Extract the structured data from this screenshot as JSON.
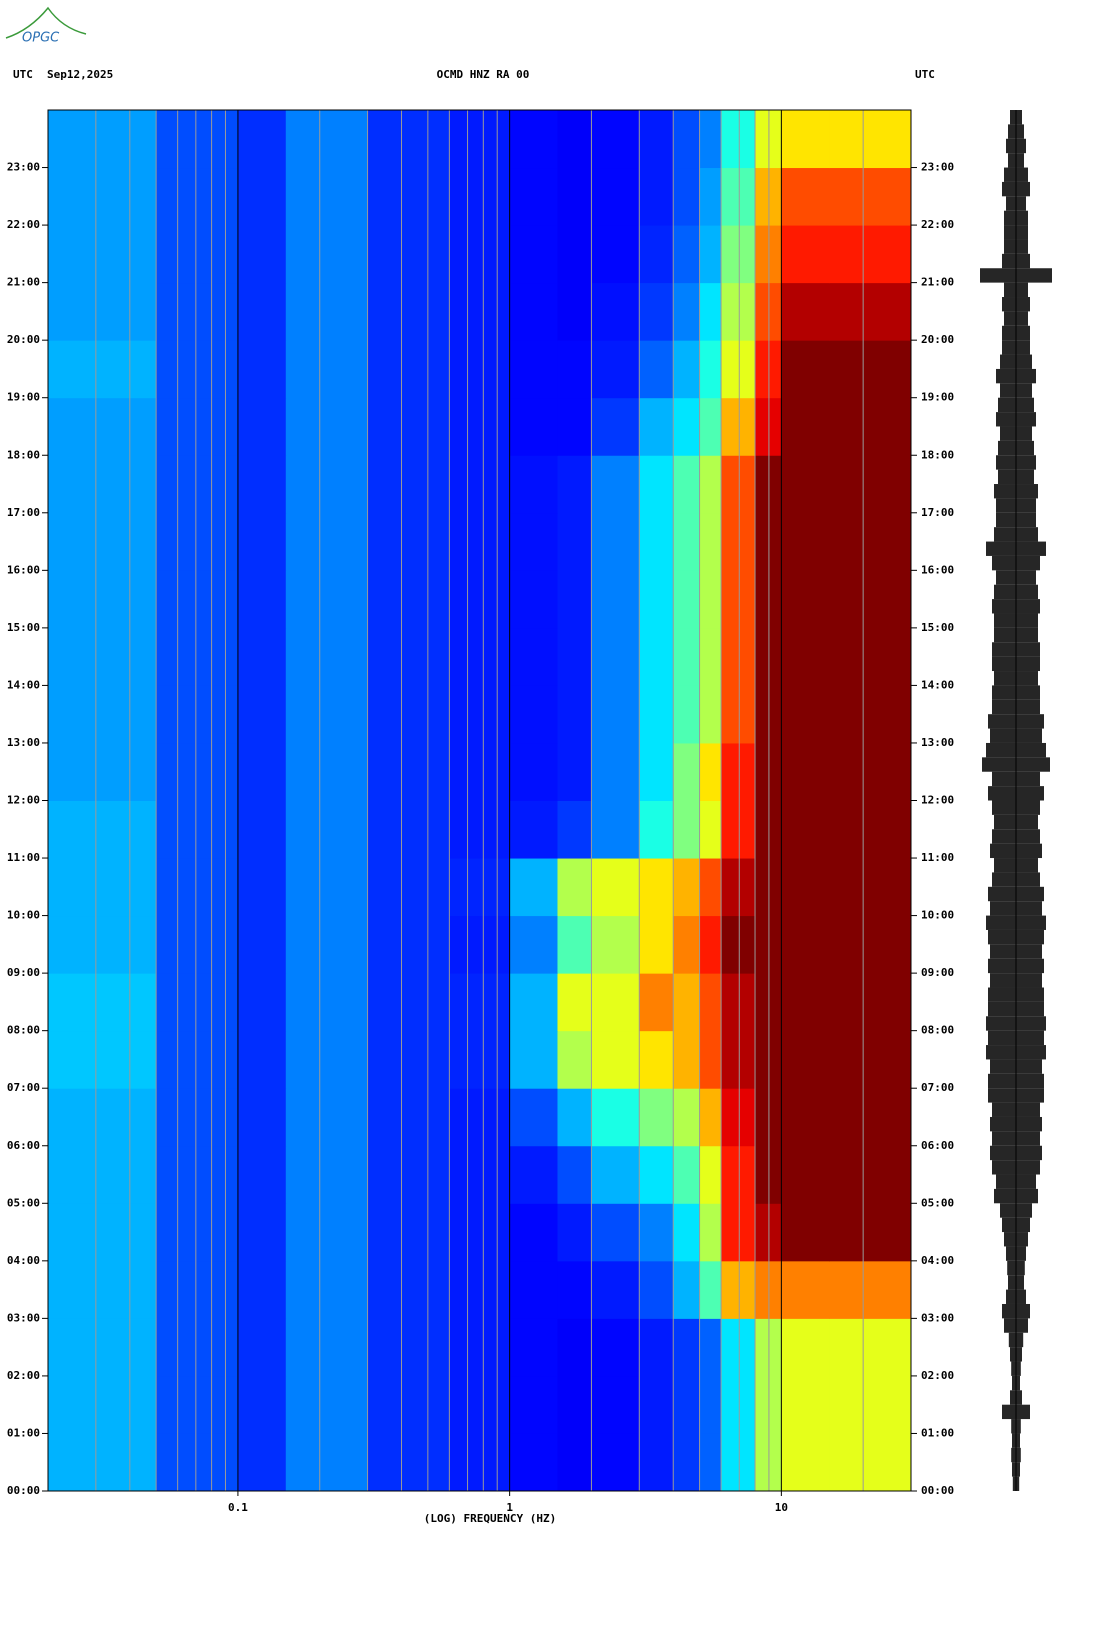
{
  "logo": "OPGC",
  "chart_data": [
    {
      "type": "spectrogram",
      "title": "OCMD HNZ RA 00",
      "left_label": "UTC",
      "date": "Sep12,2025",
      "right_label": "UTC",
      "xlabel": "(LOG) FREQUENCY (HZ)",
      "log_x": true,
      "colormap": "jet",
      "xlim": [
        0.02,
        30
      ],
      "xticks": [
        0.1,
        1,
        10
      ],
      "xgrid": [
        0.03,
        0.04,
        0.05,
        0.06,
        0.07,
        0.08,
        0.09,
        0.2,
        0.3,
        0.4,
        0.5,
        0.6,
        0.7,
        0.8,
        0.9,
        2,
        3,
        4,
        5,
        6,
        7,
        8,
        9,
        20
      ],
      "ylim": [
        0,
        24
      ],
      "yticks": [
        {
          "value": 0,
          "label": "00:00"
        },
        {
          "value": 1,
          "label": "01:00"
        },
        {
          "value": 2,
          "label": "02:00"
        },
        {
          "value": 3,
          "label": "03:00"
        },
        {
          "value": 4,
          "label": "04:00"
        },
        {
          "value": 5,
          "label": "05:00"
        },
        {
          "value": 6,
          "label": "06:00"
        },
        {
          "value": 7,
          "label": "07:00"
        },
        {
          "value": 8,
          "label": "08:00"
        },
        {
          "value": 9,
          "label": "09:00"
        },
        {
          "value": 10,
          "label": "10:00"
        },
        {
          "value": 11,
          "label": "11:00"
        },
        {
          "value": 12,
          "label": "12:00"
        },
        {
          "value": 13,
          "label": "13:00"
        },
        {
          "value": 14,
          "label": "14:00"
        },
        {
          "value": 15,
          "label": "15:00"
        },
        {
          "value": 16,
          "label": "16:00"
        },
        {
          "value": 17,
          "label": "17:00"
        },
        {
          "value": 18,
          "label": "18:00"
        },
        {
          "value": 19,
          "label": "19:00"
        },
        {
          "value": 20,
          "label": "20:00"
        },
        {
          "value": 21,
          "label": "21:00"
        },
        {
          "value": 22,
          "label": "22:00"
        },
        {
          "value": 23,
          "label": "23:00"
        }
      ],
      "bins": [
        0.02,
        0.05,
        0.1,
        0.15,
        0.3,
        0.6,
        1,
        1.5,
        2,
        3,
        4,
        5,
        6,
        8,
        10,
        15,
        30
      ],
      "y_bins": [
        0,
        1,
        2,
        3,
        4,
        5,
        6,
        7,
        8,
        9,
        10,
        11,
        12,
        13,
        14,
        15,
        16,
        17,
        18,
        19,
        20,
        21,
        22,
        23,
        24
      ],
      "values": [
        [
          0.3,
          0.2,
          0.17,
          0.25,
          0.17,
          0.15,
          0.13,
          0.12,
          0.13,
          0.15,
          0.18,
          0.22,
          0.35,
          0.55,
          0.6,
          0.6
        ],
        [
          0.3,
          0.2,
          0.17,
          0.25,
          0.17,
          0.15,
          0.13,
          0.12,
          0.13,
          0.15,
          0.18,
          0.22,
          0.35,
          0.55,
          0.6,
          0.6
        ],
        [
          0.3,
          0.2,
          0.17,
          0.25,
          0.17,
          0.15,
          0.13,
          0.12,
          0.13,
          0.15,
          0.18,
          0.22,
          0.35,
          0.55,
          0.6,
          0.6
        ],
        [
          0.3,
          0.2,
          0.17,
          0.25,
          0.17,
          0.15,
          0.13,
          0.13,
          0.15,
          0.2,
          0.3,
          0.45,
          0.7,
          0.75,
          0.75,
          0.75
        ],
        [
          0.3,
          0.2,
          0.17,
          0.25,
          0.17,
          0.15,
          0.13,
          0.15,
          0.2,
          0.25,
          0.35,
          0.55,
          0.85,
          0.95,
          1,
          1
        ],
        [
          0.3,
          0.2,
          0.17,
          0.25,
          0.17,
          0.15,
          0.15,
          0.2,
          0.3,
          0.35,
          0.45,
          0.6,
          0.85,
          1,
          1,
          1
        ],
        [
          0.3,
          0.2,
          0.17,
          0.25,
          0.17,
          0.15,
          0.2,
          0.3,
          0.4,
          0.5,
          0.55,
          0.7,
          0.9,
          1,
          1,
          1
        ],
        [
          0.32,
          0.2,
          0.17,
          0.25,
          0.17,
          0.16,
          0.3,
          0.55,
          0.6,
          0.65,
          0.7,
          0.8,
          0.95,
          1,
          1,
          1
        ],
        [
          0.32,
          0.2,
          0.17,
          0.25,
          0.17,
          0.16,
          0.3,
          0.6,
          0.6,
          0.75,
          0.7,
          0.8,
          0.95,
          1,
          1,
          1
        ],
        [
          0.3,
          0.2,
          0.17,
          0.25,
          0.17,
          0.15,
          0.25,
          0.45,
          0.55,
          0.65,
          0.75,
          0.85,
          1,
          1,
          1,
          1
        ],
        [
          0.3,
          0.2,
          0.17,
          0.25,
          0.17,
          0.16,
          0.3,
          0.55,
          0.6,
          0.65,
          0.7,
          0.8,
          0.95,
          1,
          1,
          1
        ],
        [
          0.3,
          0.2,
          0.17,
          0.25,
          0.17,
          0.15,
          0.15,
          0.18,
          0.25,
          0.4,
          0.5,
          0.6,
          0.85,
          1,
          1,
          1
        ],
        [
          0.28,
          0.2,
          0.17,
          0.25,
          0.17,
          0.15,
          0.14,
          0.15,
          0.25,
          0.35,
          0.5,
          0.65,
          0.85,
          1,
          1,
          1
        ],
        [
          0.28,
          0.2,
          0.17,
          0.25,
          0.17,
          0.15,
          0.14,
          0.15,
          0.25,
          0.35,
          0.45,
          0.55,
          0.8,
          1,
          1,
          1
        ],
        [
          0.28,
          0.2,
          0.17,
          0.25,
          0.17,
          0.15,
          0.14,
          0.15,
          0.25,
          0.35,
          0.45,
          0.55,
          0.8,
          1,
          1,
          1
        ],
        [
          0.28,
          0.2,
          0.17,
          0.25,
          0.17,
          0.15,
          0.14,
          0.15,
          0.25,
          0.35,
          0.45,
          0.55,
          0.8,
          1,
          1,
          1
        ],
        [
          0.28,
          0.2,
          0.17,
          0.25,
          0.17,
          0.15,
          0.14,
          0.15,
          0.25,
          0.35,
          0.45,
          0.55,
          0.8,
          1,
          1,
          1
        ],
        [
          0.28,
          0.2,
          0.17,
          0.25,
          0.17,
          0.15,
          0.14,
          0.15,
          0.25,
          0.35,
          0.45,
          0.55,
          0.8,
          1,
          1,
          1
        ],
        [
          0.28,
          0.2,
          0.17,
          0.25,
          0.17,
          0.15,
          0.13,
          0.13,
          0.18,
          0.3,
          0.35,
          0.45,
          0.7,
          0.9,
          1,
          1
        ],
        [
          0.3,
          0.2,
          0.17,
          0.25,
          0.17,
          0.15,
          0.13,
          0.13,
          0.15,
          0.22,
          0.3,
          0.4,
          0.6,
          0.85,
          1,
          1
        ],
        [
          0.28,
          0.2,
          0.17,
          0.25,
          0.17,
          0.15,
          0.13,
          0.12,
          0.14,
          0.18,
          0.25,
          0.35,
          0.55,
          0.8,
          0.95,
          0.95
        ],
        [
          0.28,
          0.2,
          0.17,
          0.25,
          0.17,
          0.15,
          0.13,
          0.12,
          0.13,
          0.16,
          0.22,
          0.3,
          0.5,
          0.75,
          0.85,
          0.85
        ],
        [
          0.28,
          0.2,
          0.17,
          0.25,
          0.17,
          0.15,
          0.13,
          0.12,
          0.13,
          0.15,
          0.2,
          0.28,
          0.45,
          0.7,
          0.8,
          0.8
        ],
        [
          0.28,
          0.2,
          0.17,
          0.25,
          0.17,
          0.15,
          0.13,
          0.12,
          0.13,
          0.15,
          0.2,
          0.25,
          0.4,
          0.6,
          0.65,
          0.65
        ]
      ]
    },
    {
      "type": "trace",
      "color": "#000000",
      "values": [
        0.08,
        0.1,
        0.12,
        0.1,
        0.12,
        0.35,
        0.15,
        0.1,
        0.12,
        0.15,
        0.18,
        0.3,
        0.35,
        0.25,
        0.2,
        0.22,
        0.25,
        0.3,
        0.35,
        0.4,
        0.55,
        0.5,
        0.6,
        0.65,
        0.6,
        0.65,
        0.6,
        0.7,
        0.7,
        0.65,
        0.75,
        0.7,
        0.75,
        0.7,
        0.7,
        0.65,
        0.7,
        0.65,
        0.7,
        0.75,
        0.65,
        0.7,
        0.6,
        0.55,
        0.65,
        0.6,
        0.55,
        0.6,
        0.7,
        0.6,
        0.85,
        0.75,
        0.65,
        0.7,
        0.6,
        0.6,
        0.55,
        0.6,
        0.6,
        0.55,
        0.55,
        0.6,
        0.55,
        0.5,
        0.6,
        0.75,
        0.55,
        0.5,
        0.5,
        0.55,
        0.45,
        0.5,
        0.45,
        0.4,
        0.5,
        0.45,
        0.4,
        0.5,
        0.4,
        0.35,
        0.35,
        0.3,
        0.35,
        0.3,
        0.9,
        0.35,
        0.3,
        0.3,
        0.3,
        0.25,
        0.35,
        0.3,
        0.2,
        0.25,
        0.2,
        0.15
      ]
    }
  ]
}
